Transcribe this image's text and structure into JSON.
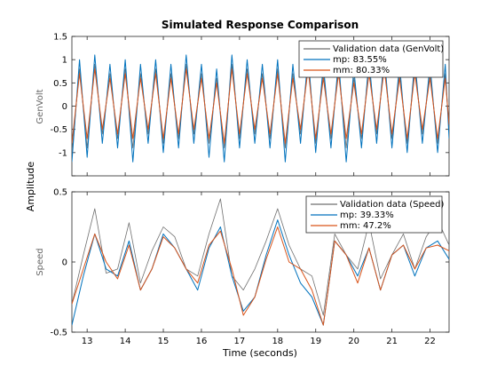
{
  "figure": {
    "title": "Simulated Response Comparison",
    "shared_ylabel": "Amplitude",
    "xlabel": "Time (seconds)"
  },
  "colors": {
    "validation": "#6f6f6f",
    "mp": "#0072bd",
    "mm": "#d95319"
  },
  "chart_data": [
    {
      "type": "line",
      "ylabel": "GenVolt",
      "xlim": [
        12.6,
        22.5
      ],
      "ylim": [
        -1.5,
        1.5
      ],
      "xticks": [
        13,
        14,
        15,
        16,
        17,
        18,
        19,
        20,
        21,
        22
      ],
      "yticks": [
        -1.5,
        -1,
        -0.5,
        0,
        0.5,
        1,
        1.5
      ],
      "ytick_labels": [
        "",
        "-1",
        "-0.5",
        "0",
        "0.5",
        "1",
        "1.5"
      ],
      "grid": false,
      "legend_position": "top-right",
      "series": [
        {
          "name": "Validation data (GenVolt)",
          "color_key": "validation",
          "x": [
            12.6,
            12.8,
            13.0,
            13.2,
            13.4,
            13.6,
            13.8,
            14.0,
            14.2,
            14.4,
            14.6,
            14.8,
            15.0,
            15.2,
            15.4,
            15.6,
            15.8,
            16.0,
            16.2,
            16.4,
            16.6,
            16.8,
            17.0,
            17.2,
            17.4,
            17.6,
            17.8,
            18.0,
            18.2,
            18.4,
            18.6,
            18.8,
            19.0,
            19.2,
            19.4,
            19.6,
            19.8,
            20.0,
            20.2,
            20.4,
            20.6,
            20.8,
            21.0,
            21.2,
            21.4,
            21.6,
            21.8,
            22.0,
            22.2,
            22.4,
            22.5
          ],
          "y": [
            -1.0,
            0.8,
            -0.9,
            0.9,
            -0.6,
            0.7,
            -0.7,
            0.8,
            -0.9,
            0.7,
            -0.6,
            0.8,
            -0.8,
            0.7,
            -0.7,
            0.9,
            -0.6,
            0.7,
            -0.8,
            0.6,
            -0.9,
            0.9,
            -0.7,
            0.8,
            -0.6,
            0.7,
            -0.7,
            0.8,
            -0.9,
            0.7,
            -0.6,
            0.9,
            -0.8,
            0.7,
            -0.7,
            0.8,
            -0.9,
            0.6,
            -0.7,
            0.8,
            -0.6,
            0.9,
            -0.7,
            0.7,
            -0.8,
            0.8,
            -0.6,
            0.7,
            -0.8,
            0.7,
            -0.5
          ]
        },
        {
          "name": "mp: 83.55%",
          "color_key": "mp",
          "x": [
            12.6,
            12.8,
            13.0,
            13.2,
            13.4,
            13.6,
            13.8,
            14.0,
            14.2,
            14.4,
            14.6,
            14.8,
            15.0,
            15.2,
            15.4,
            15.6,
            15.8,
            16.0,
            16.2,
            16.4,
            16.6,
            16.8,
            17.0,
            17.2,
            17.4,
            17.6,
            17.8,
            18.0,
            18.2,
            18.4,
            18.6,
            18.8,
            19.0,
            19.2,
            19.4,
            19.6,
            19.8,
            20.0,
            20.2,
            20.4,
            20.6,
            20.8,
            21.0,
            21.2,
            21.4,
            21.6,
            21.8,
            22.0,
            22.2,
            22.4,
            22.5
          ],
          "y": [
            -1.2,
            1.0,
            -1.1,
            1.1,
            -0.8,
            0.9,
            -0.9,
            1.0,
            -1.2,
            0.9,
            -0.8,
            1.0,
            -1.0,
            0.9,
            -0.9,
            1.1,
            -0.8,
            0.9,
            -1.1,
            0.8,
            -1.2,
            1.1,
            -0.9,
            1.0,
            -0.8,
            0.9,
            -0.9,
            1.0,
            -1.2,
            0.9,
            -0.8,
            1.1,
            -1.0,
            0.9,
            -0.9,
            1.0,
            -1.2,
            0.8,
            -0.9,
            1.0,
            -0.8,
            1.1,
            -0.9,
            0.9,
            -1.0,
            1.0,
            -0.8,
            0.9,
            -1.0,
            0.9,
            -0.7
          ]
        },
        {
          "name": "mm: 80.33%",
          "color_key": "mm",
          "x": [
            12.6,
            12.8,
            13.0,
            13.2,
            13.4,
            13.6,
            13.8,
            14.0,
            14.2,
            14.4,
            14.6,
            14.8,
            15.0,
            15.2,
            15.4,
            15.6,
            15.8,
            16.0,
            16.2,
            16.4,
            16.6,
            16.8,
            17.0,
            17.2,
            17.4,
            17.6,
            17.8,
            18.0,
            18.2,
            18.4,
            18.6,
            18.8,
            19.0,
            19.2,
            19.4,
            19.6,
            19.8,
            20.0,
            20.2,
            20.4,
            20.6,
            20.8,
            21.0,
            21.2,
            21.4,
            21.6,
            21.8,
            22.0,
            22.2,
            22.4,
            22.5
          ],
          "y": [
            -0.8,
            0.7,
            -0.7,
            0.8,
            -0.5,
            0.6,
            -0.6,
            0.7,
            -0.7,
            0.6,
            -0.5,
            0.7,
            -0.7,
            0.6,
            -0.6,
            0.8,
            -0.5,
            0.6,
            -0.7,
            0.5,
            -0.8,
            0.8,
            -0.6,
            0.7,
            -0.5,
            0.6,
            -0.6,
            0.7,
            -0.8,
            0.6,
            -0.5,
            0.8,
            -0.7,
            0.6,
            -0.6,
            0.7,
            -0.7,
            0.5,
            -0.6,
            0.7,
            -0.5,
            0.8,
            -0.6,
            0.6,
            -0.7,
            0.7,
            -0.5,
            0.6,
            -0.7,
            0.6,
            -0.4
          ]
        }
      ]
    },
    {
      "type": "line",
      "ylabel": "Speed",
      "xlim": [
        12.6,
        22.5
      ],
      "ylim": [
        -0.5,
        0.5
      ],
      "xticks": [
        13,
        14,
        15,
        16,
        17,
        18,
        19,
        20,
        21,
        22
      ],
      "xtick_labels": [
        "13",
        "14",
        "15",
        "16",
        "17",
        "18",
        "19",
        "20",
        "21",
        "22"
      ],
      "yticks": [
        -0.5,
        0,
        0.5
      ],
      "ytick_labels": [
        "-0.5",
        "0",
        "0.5"
      ],
      "grid": false,
      "legend_position": "top-right",
      "series": [
        {
          "name": "Validation data (Speed)",
          "color_key": "validation",
          "x": [
            12.6,
            12.9,
            13.2,
            13.5,
            13.8,
            14.1,
            14.4,
            14.7,
            15.0,
            15.3,
            15.6,
            15.9,
            16.2,
            16.5,
            16.8,
            17.1,
            17.4,
            17.7,
            18.0,
            18.3,
            18.6,
            18.9,
            19.2,
            19.5,
            19.8,
            20.1,
            20.4,
            20.7,
            21.0,
            21.3,
            21.6,
            21.9,
            22.2,
            22.5
          ],
          "y": [
            -0.3,
            0.05,
            0.38,
            -0.08,
            -0.05,
            0.28,
            -0.15,
            0.08,
            0.25,
            0.18,
            -0.05,
            -0.1,
            0.2,
            0.45,
            -0.1,
            -0.2,
            -0.05,
            0.15,
            0.38,
            0.12,
            -0.05,
            -0.1,
            -0.38,
            0.2,
            0.05,
            -0.05,
            0.28,
            -0.12,
            0.05,
            0.2,
            -0.05,
            0.18,
            0.3,
            0.12
          ]
        },
        {
          "name": "mp: 39.33%",
          "color_key": "mp",
          "x": [
            12.6,
            12.9,
            13.2,
            13.5,
            13.8,
            14.1,
            14.4,
            14.7,
            15.0,
            15.3,
            15.6,
            15.9,
            16.2,
            16.5,
            16.8,
            17.1,
            17.4,
            17.7,
            18.0,
            18.3,
            18.6,
            18.9,
            19.2,
            19.5,
            19.8,
            20.1,
            20.4,
            20.7,
            21.0,
            21.3,
            21.6,
            21.9,
            22.2,
            22.5
          ],
          "y": [
            -0.45,
            -0.1,
            0.2,
            -0.05,
            -0.1,
            0.15,
            -0.2,
            -0.05,
            0.2,
            0.1,
            -0.05,
            -0.2,
            0.1,
            0.25,
            -0.1,
            -0.35,
            -0.25,
            0.05,
            0.3,
            0.05,
            -0.15,
            -0.25,
            -0.45,
            0.15,
            0.05,
            -0.1,
            0.1,
            -0.2,
            0.05,
            0.12,
            -0.1,
            0.1,
            0.15,
            0.02
          ]
        },
        {
          "name": "mm: 47.2%",
          "color_key": "mm",
          "x": [
            12.6,
            12.9,
            13.2,
            13.5,
            13.8,
            14.1,
            14.4,
            14.7,
            15.0,
            15.3,
            15.6,
            15.9,
            16.2,
            16.5,
            16.8,
            17.1,
            17.4,
            17.7,
            18.0,
            18.3,
            18.6,
            18.9,
            19.2,
            19.5,
            19.8,
            20.1,
            20.4,
            20.7,
            21.0,
            21.3,
            21.6,
            21.9,
            22.2,
            22.5
          ],
          "y": [
            -0.3,
            -0.05,
            0.2,
            0.0,
            -0.12,
            0.12,
            -0.2,
            -0.05,
            0.18,
            0.1,
            -0.05,
            -0.15,
            0.12,
            0.22,
            -0.05,
            -0.38,
            -0.25,
            0.02,
            0.25,
            0.0,
            -0.05,
            -0.2,
            -0.45,
            0.15,
            0.05,
            -0.15,
            0.1,
            -0.2,
            0.05,
            0.12,
            -0.05,
            0.1,
            0.12,
            0.08
          ]
        }
      ]
    }
  ]
}
